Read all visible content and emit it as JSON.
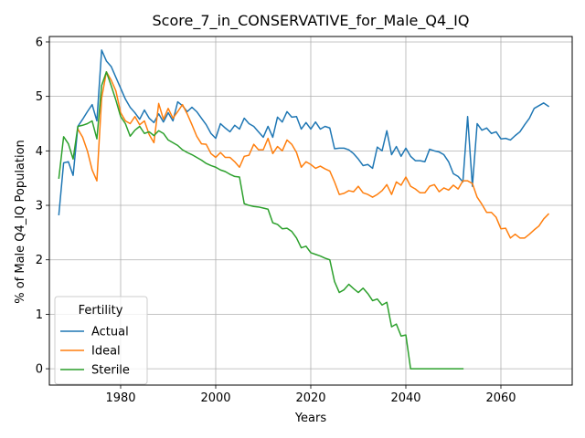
{
  "chart_data": {
    "type": "line",
    "title": "Score_7_in_CONSERVATIVE_for_Male_Q4_IQ",
    "xlabel": "Years",
    "ylabel": "% of Male Q4_IQ Population",
    "xlim": [
      1965,
      2075
    ],
    "ylim": [
      -0.3,
      6.1
    ],
    "xticks": [
      1980,
      2000,
      2020,
      2040,
      2060
    ],
    "yticks": [
      0,
      1,
      2,
      3,
      4,
      5,
      6
    ],
    "grid": true,
    "legend": {
      "title": "Fertility",
      "placement": "lower-left"
    },
    "series": [
      {
        "name": "Actual",
        "color": "#1f77b4",
        "points": [
          [
            1967,
            2.83
          ],
          [
            1968,
            3.78
          ],
          [
            1969,
            3.8
          ],
          [
            1970,
            3.55
          ],
          [
            1971,
            4.45
          ],
          [
            1972,
            4.58
          ],
          [
            1973,
            4.72
          ],
          [
            1974,
            4.85
          ],
          [
            1975,
            4.55
          ],
          [
            1976,
            5.85
          ],
          [
            1977,
            5.65
          ],
          [
            1978,
            5.55
          ],
          [
            1979,
            5.35
          ],
          [
            1980,
            5.15
          ],
          [
            1981,
            4.95
          ],
          [
            1982,
            4.8
          ],
          [
            1983,
            4.7
          ],
          [
            1984,
            4.58
          ],
          [
            1985,
            4.75
          ],
          [
            1986,
            4.6
          ],
          [
            1987,
            4.52
          ],
          [
            1988,
            4.68
          ],
          [
            1989,
            4.53
          ],
          [
            1990,
            4.7
          ],
          [
            1991,
            4.55
          ],
          [
            1992,
            4.9
          ],
          [
            1993,
            4.83
          ],
          [
            1994,
            4.72
          ],
          [
            1995,
            4.8
          ],
          [
            1996,
            4.72
          ],
          [
            1997,
            4.6
          ],
          [
            1998,
            4.48
          ],
          [
            1999,
            4.32
          ],
          [
            2000,
            4.23
          ],
          [
            2001,
            4.5
          ],
          [
            2002,
            4.42
          ],
          [
            2003,
            4.35
          ],
          [
            2004,
            4.47
          ],
          [
            2005,
            4.4
          ],
          [
            2006,
            4.6
          ],
          [
            2007,
            4.5
          ],
          [
            2008,
            4.45
          ],
          [
            2009,
            4.35
          ],
          [
            2010,
            4.25
          ],
          [
            2011,
            4.45
          ],
          [
            2012,
            4.25
          ],
          [
            2013,
            4.62
          ],
          [
            2014,
            4.53
          ],
          [
            2015,
            4.72
          ],
          [
            2016,
            4.62
          ],
          [
            2017,
            4.63
          ],
          [
            2018,
            4.4
          ],
          [
            2019,
            4.52
          ],
          [
            2020,
            4.4
          ],
          [
            2021,
            4.53
          ],
          [
            2022,
            4.4
          ],
          [
            2023,
            4.45
          ],
          [
            2024,
            4.42
          ],
          [
            2025,
            4.04
          ],
          [
            2026,
            4.05
          ],
          [
            2027,
            4.05
          ],
          [
            2028,
            4.02
          ],
          [
            2029,
            3.95
          ],
          [
            2030,
            3.85
          ],
          [
            2031,
            3.73
          ],
          [
            2032,
            3.75
          ],
          [
            2033,
            3.68
          ],
          [
            2034,
            4.07
          ],
          [
            2035,
            4.0
          ],
          [
            2036,
            4.37
          ],
          [
            2037,
            3.93
          ],
          [
            2038,
            4.08
          ],
          [
            2039,
            3.9
          ],
          [
            2040,
            4.05
          ],
          [
            2041,
            3.9
          ],
          [
            2042,
            3.82
          ],
          [
            2043,
            3.82
          ],
          [
            2044,
            3.8
          ],
          [
            2045,
            4.03
          ],
          [
            2046,
            4.0
          ],
          [
            2047,
            3.98
          ],
          [
            2048,
            3.93
          ],
          [
            2049,
            3.8
          ],
          [
            2050,
            3.58
          ],
          [
            2051,
            3.53
          ],
          [
            2052,
            3.43
          ],
          [
            2053,
            4.63
          ],
          [
            2054,
            3.35
          ],
          [
            2055,
            4.5
          ],
          [
            2056,
            4.38
          ],
          [
            2057,
            4.42
          ],
          [
            2058,
            4.32
          ],
          [
            2059,
            4.35
          ],
          [
            2060,
            4.22
          ],
          [
            2061,
            4.23
          ],
          [
            2062,
            4.2
          ],
          [
            2063,
            4.28
          ],
          [
            2064,
            4.35
          ],
          [
            2065,
            4.48
          ],
          [
            2066,
            4.6
          ],
          [
            2067,
            4.78
          ],
          [
            2068,
            4.83
          ],
          [
            2069,
            4.88
          ],
          [
            2070,
            4.82
          ]
        ]
      },
      {
        "name": "Ideal",
        "color": "#ff7f0e",
        "points": [
          [
            1971,
            4.4
          ],
          [
            1972,
            4.25
          ],
          [
            1973,
            4.0
          ],
          [
            1974,
            3.65
          ],
          [
            1975,
            3.45
          ],
          [
            1976,
            4.97
          ],
          [
            1977,
            5.45
          ],
          [
            1978,
            5.3
          ],
          [
            1979,
            5.1
          ],
          [
            1980,
            4.7
          ],
          [
            1981,
            4.55
          ],
          [
            1982,
            4.5
          ],
          [
            1983,
            4.63
          ],
          [
            1984,
            4.48
          ],
          [
            1985,
            4.55
          ],
          [
            1986,
            4.3
          ],
          [
            1987,
            4.15
          ],
          [
            1988,
            4.87
          ],
          [
            1989,
            4.58
          ],
          [
            1990,
            4.78
          ],
          [
            1991,
            4.6
          ],
          [
            1992,
            4.72
          ],
          [
            1993,
            4.85
          ],
          [
            1994,
            4.68
          ],
          [
            1995,
            4.48
          ],
          [
            1996,
            4.27
          ],
          [
            1997,
            4.13
          ],
          [
            1998,
            4.12
          ],
          [
            1999,
            3.95
          ],
          [
            2000,
            3.88
          ],
          [
            2001,
            3.97
          ],
          [
            2002,
            3.88
          ],
          [
            2003,
            3.88
          ],
          [
            2004,
            3.8
          ],
          [
            2005,
            3.7
          ],
          [
            2006,
            3.9
          ],
          [
            2007,
            3.92
          ],
          [
            2008,
            4.12
          ],
          [
            2009,
            4.02
          ],
          [
            2010,
            4.02
          ],
          [
            2011,
            4.23
          ],
          [
            2012,
            3.95
          ],
          [
            2013,
            4.08
          ],
          [
            2014,
            4.0
          ],
          [
            2015,
            4.2
          ],
          [
            2016,
            4.12
          ],
          [
            2017,
            3.97
          ],
          [
            2018,
            3.7
          ],
          [
            2019,
            3.8
          ],
          [
            2020,
            3.75
          ],
          [
            2021,
            3.68
          ],
          [
            2022,
            3.72
          ],
          [
            2023,
            3.67
          ],
          [
            2024,
            3.63
          ],
          [
            2025,
            3.43
          ],
          [
            2026,
            3.2
          ],
          [
            2027,
            3.22
          ],
          [
            2028,
            3.27
          ],
          [
            2029,
            3.25
          ],
          [
            2030,
            3.35
          ],
          [
            2031,
            3.23
          ],
          [
            2032,
            3.2
          ],
          [
            2033,
            3.15
          ],
          [
            2034,
            3.2
          ],
          [
            2035,
            3.27
          ],
          [
            2036,
            3.38
          ],
          [
            2037,
            3.2
          ],
          [
            2038,
            3.43
          ],
          [
            2039,
            3.37
          ],
          [
            2040,
            3.52
          ],
          [
            2041,
            3.35
          ],
          [
            2042,
            3.3
          ],
          [
            2043,
            3.23
          ],
          [
            2044,
            3.23
          ],
          [
            2045,
            3.35
          ],
          [
            2046,
            3.38
          ],
          [
            2047,
            3.25
          ],
          [
            2048,
            3.32
          ],
          [
            2049,
            3.28
          ],
          [
            2050,
            3.37
          ],
          [
            2051,
            3.3
          ],
          [
            2052,
            3.45
          ],
          [
            2053,
            3.45
          ],
          [
            2054,
            3.4
          ],
          [
            2055,
            3.15
          ],
          [
            2056,
            3.02
          ],
          [
            2057,
            2.87
          ],
          [
            2058,
            2.87
          ],
          [
            2059,
            2.78
          ],
          [
            2060,
            2.57
          ],
          [
            2061,
            2.58
          ],
          [
            2062,
            2.4
          ],
          [
            2063,
            2.47
          ],
          [
            2064,
            2.4
          ],
          [
            2065,
            2.4
          ],
          [
            2066,
            2.47
          ],
          [
            2067,
            2.55
          ],
          [
            2068,
            2.62
          ],
          [
            2069,
            2.75
          ],
          [
            2070,
            2.84
          ]
        ]
      },
      {
        "name": "Sterile",
        "color": "#2ca02c",
        "points": [
          [
            1967,
            3.5
          ],
          [
            1968,
            4.26
          ],
          [
            1969,
            4.13
          ],
          [
            1970,
            3.85
          ],
          [
            1971,
            4.45
          ],
          [
            1972,
            4.47
          ],
          [
            1973,
            4.5
          ],
          [
            1974,
            4.55
          ],
          [
            1975,
            4.22
          ],
          [
            1976,
            5.2
          ],
          [
            1977,
            5.45
          ],
          [
            1978,
            5.2
          ],
          [
            1979,
            4.93
          ],
          [
            1980,
            4.63
          ],
          [
            1981,
            4.5
          ],
          [
            1982,
            4.27
          ],
          [
            1983,
            4.38
          ],
          [
            1984,
            4.45
          ],
          [
            1985,
            4.32
          ],
          [
            1986,
            4.35
          ],
          [
            1987,
            4.28
          ],
          [
            1988,
            4.37
          ],
          [
            1989,
            4.32
          ],
          [
            1990,
            4.2
          ],
          [
            1991,
            4.15
          ],
          [
            1992,
            4.1
          ],
          [
            1993,
            4.02
          ],
          [
            1994,
            3.97
          ],
          [
            1995,
            3.93
          ],
          [
            1996,
            3.88
          ],
          [
            1997,
            3.83
          ],
          [
            1998,
            3.77
          ],
          [
            1999,
            3.73
          ],
          [
            2000,
            3.7
          ],
          [
            2001,
            3.65
          ],
          [
            2002,
            3.62
          ],
          [
            2003,
            3.57
          ],
          [
            2004,
            3.53
          ],
          [
            2005,
            3.52
          ],
          [
            2006,
            3.03
          ],
          [
            2007,
            3.0
          ],
          [
            2008,
            2.98
          ],
          [
            2009,
            2.97
          ],
          [
            2010,
            2.95
          ],
          [
            2011,
            2.93
          ],
          [
            2012,
            2.68
          ],
          [
            2013,
            2.65
          ],
          [
            2014,
            2.57
          ],
          [
            2015,
            2.58
          ],
          [
            2016,
            2.52
          ],
          [
            2017,
            2.4
          ],
          [
            2018,
            2.22
          ],
          [
            2019,
            2.25
          ],
          [
            2020,
            2.13
          ],
          [
            2021,
            2.1
          ],
          [
            2022,
            2.07
          ],
          [
            2023,
            2.03
          ],
          [
            2024,
            2.0
          ],
          [
            2025,
            1.6
          ],
          [
            2026,
            1.4
          ],
          [
            2027,
            1.45
          ],
          [
            2028,
            1.55
          ],
          [
            2029,
            1.47
          ],
          [
            2030,
            1.4
          ],
          [
            2031,
            1.48
          ],
          [
            2032,
            1.38
          ],
          [
            2033,
            1.25
          ],
          [
            2034,
            1.28
          ],
          [
            2035,
            1.17
          ],
          [
            2036,
            1.22
          ],
          [
            2037,
            0.77
          ],
          [
            2038,
            0.82
          ],
          [
            2039,
            0.6
          ],
          [
            2040,
            0.62
          ],
          [
            2041,
            0.0
          ],
          [
            2042,
            0.0
          ],
          [
            2043,
            0.0
          ],
          [
            2044,
            0.0
          ],
          [
            2045,
            0.0
          ],
          [
            2046,
            0.0
          ],
          [
            2047,
            0.0
          ],
          [
            2048,
            0.0
          ],
          [
            2049,
            0.0
          ],
          [
            2050,
            0.0
          ],
          [
            2051,
            0.0
          ],
          [
            2052,
            0.0
          ]
        ]
      }
    ]
  }
}
